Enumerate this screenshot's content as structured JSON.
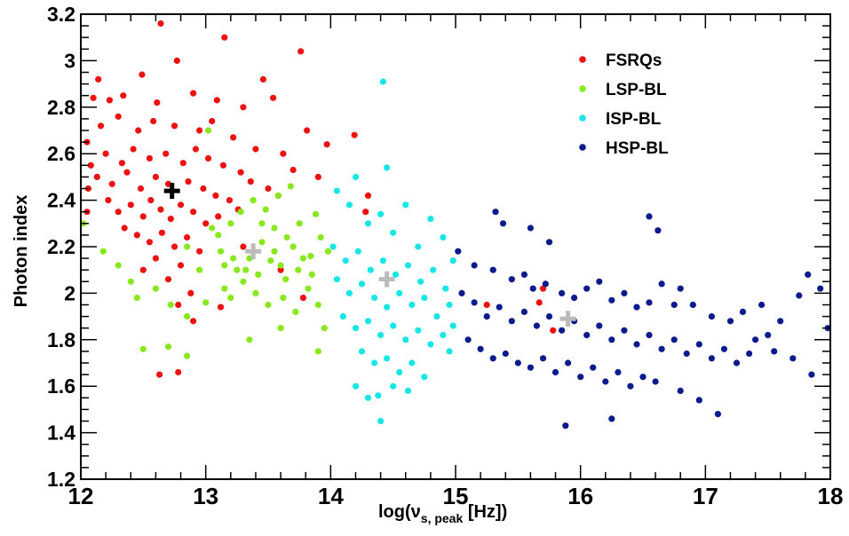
{
  "chart_data": {
    "type": "scatter",
    "xlabel_main": "log(ν",
    "xlabel_sub": "s, peak",
    "xlabel_tail": " [Hz])",
    "ylabel": "Photon  index",
    "xlim": [
      12,
      18
    ],
    "ylim": [
      1.2,
      3.2
    ],
    "xticks": [
      12,
      13,
      14,
      15,
      16,
      17,
      18
    ],
    "yticks": [
      1.2,
      1.4,
      1.6,
      1.8,
      2,
      2.2,
      2.4,
      2.6,
      2.8,
      3,
      3.2
    ],
    "xtick_labels": [
      "12",
      "13",
      "14",
      "15",
      "16",
      "17",
      "18"
    ],
    "ytick_labels": [
      "1.2",
      "1.4",
      "1.6",
      "1.8",
      "2",
      "2.2",
      "2.4",
      "2.6",
      "2.8",
      "3",
      "3.2"
    ],
    "grid": false,
    "legend_position": "top-right",
    "series": [
      {
        "name": "FSRQs",
        "color": "#ee1111",
        "mean_marker": {
          "x": 12.73,
          "y": 2.44,
          "color": "#000000"
        },
        "points": [
          [
            12.64,
            3.16
          ],
          [
            13.15,
            3.1
          ],
          [
            13.76,
            3.04
          ],
          [
            12.77,
            3.0
          ],
          [
            12.14,
            2.92
          ],
          [
            12.49,
            2.94
          ],
          [
            13.46,
            2.92
          ],
          [
            12.1,
            2.84
          ],
          [
            12.23,
            2.83
          ],
          [
            12.34,
            2.85
          ],
          [
            12.61,
            2.82
          ],
          [
            12.9,
            2.86
          ],
          [
            13.09,
            2.83
          ],
          [
            13.3,
            2.8
          ],
          [
            13.54,
            2.84
          ],
          [
            13.81,
            2.7
          ],
          [
            13.97,
            2.64
          ],
          [
            14.19,
            2.68
          ],
          [
            12.05,
            2.65
          ],
          [
            12.16,
            2.72
          ],
          [
            12.3,
            2.76
          ],
          [
            12.46,
            2.7
          ],
          [
            12.58,
            2.74
          ],
          [
            12.75,
            2.72
          ],
          [
            12.95,
            2.7
          ],
          [
            13.05,
            2.74
          ],
          [
            13.22,
            2.67
          ],
          [
            13.4,
            2.62
          ],
          [
            13.62,
            2.6
          ],
          [
            13.7,
            2.53
          ],
          [
            13.9,
            2.5
          ],
          [
            12.08,
            2.55
          ],
          [
            12.2,
            2.6
          ],
          [
            12.33,
            2.56
          ],
          [
            12.42,
            2.62
          ],
          [
            12.55,
            2.58
          ],
          [
            12.68,
            2.6
          ],
          [
            12.82,
            2.56
          ],
          [
            12.92,
            2.62
          ],
          [
            13.02,
            2.58
          ],
          [
            13.14,
            2.55
          ],
          [
            13.28,
            2.52
          ],
          [
            13.36,
            2.48
          ],
          [
            13.5,
            2.45
          ],
          [
            13.58,
            2.42
          ],
          [
            12.06,
            2.45
          ],
          [
            12.13,
            2.5
          ],
          [
            12.25,
            2.47
          ],
          [
            12.37,
            2.52
          ],
          [
            12.48,
            2.45
          ],
          [
            12.6,
            2.5
          ],
          [
            12.7,
            2.47
          ],
          [
            12.86,
            2.48
          ],
          [
            12.98,
            2.45
          ],
          [
            13.08,
            2.42
          ],
          [
            13.19,
            2.4
          ],
          [
            13.26,
            2.36
          ],
          [
            12.22,
            2.4
          ],
          [
            12.3,
            2.35
          ],
          [
            12.4,
            2.38
          ],
          [
            12.5,
            2.33
          ],
          [
            12.56,
            2.4
          ],
          [
            12.64,
            2.36
          ],
          [
            12.72,
            2.32
          ],
          [
            12.8,
            2.38
          ],
          [
            12.9,
            2.35
          ],
          [
            13.0,
            2.3
          ],
          [
            13.1,
            2.33
          ],
          [
            12.35,
            2.28
          ],
          [
            12.45,
            2.25
          ],
          [
            12.55,
            2.22
          ],
          [
            12.65,
            2.26
          ],
          [
            12.75,
            2.2
          ],
          [
            12.85,
            2.24
          ],
          [
            12.95,
            2.18
          ],
          [
            12.6,
            2.15
          ],
          [
            12.8,
            2.12
          ],
          [
            12.5,
            2.1
          ],
          [
            12.7,
            2.06
          ],
          [
            12.88,
            2.0
          ],
          [
            12.78,
            1.95
          ],
          [
            12.9,
            1.88
          ],
          [
            13.12,
            1.94
          ],
          [
            12.63,
            1.65
          ],
          [
            12.78,
            1.66
          ],
          [
            13.78,
            1.98
          ],
          [
            15.25,
            1.95
          ],
          [
            15.7,
            2.02
          ],
          [
            15.67,
            1.96
          ],
          [
            15.78,
            1.84
          ],
          [
            14.3,
            2.42
          ],
          [
            14.28,
            2.35
          ],
          [
            12.05,
            2.35
          ],
          [
            13.3,
            2.2
          ],
          [
            13.6,
            2.1
          ]
        ]
      },
      {
        "name": "LSP-BL",
        "color": "#88e81e",
        "mean_marker": {
          "x": 13.38,
          "y": 2.18,
          "color": "#bbbbbb"
        },
        "points": [
          [
            12.02,
            2.3
          ],
          [
            12.18,
            2.18
          ],
          [
            12.3,
            2.12
          ],
          [
            12.4,
            2.05
          ],
          [
            12.45,
            1.98
          ],
          [
            12.6,
            2.02
          ],
          [
            12.72,
            1.95
          ],
          [
            12.85,
            1.9
          ],
          [
            13.0,
            1.96
          ],
          [
            13.15,
            2.02
          ],
          [
            13.25,
            2.1
          ],
          [
            13.35,
            2.15
          ],
          [
            13.45,
            2.22
          ],
          [
            13.55,
            2.28
          ],
          [
            13.6,
            2.12
          ],
          [
            13.7,
            2.2
          ],
          [
            13.78,
            2.15
          ],
          [
            13.85,
            2.08
          ],
          [
            13.92,
            2.24
          ],
          [
            13.98,
            2.18
          ],
          [
            13.3,
            2.05
          ],
          [
            13.4,
            2.0
          ],
          [
            13.5,
            1.95
          ],
          [
            13.62,
            1.98
          ],
          [
            13.72,
            1.92
          ],
          [
            13.82,
            2.02
          ],
          [
            13.9,
            1.95
          ],
          [
            13.95,
            1.85
          ],
          [
            13.1,
            2.25
          ],
          [
            13.2,
            2.3
          ],
          [
            13.28,
            2.35
          ],
          [
            13.38,
            2.4
          ],
          [
            13.48,
            2.36
          ],
          [
            13.58,
            2.42
          ],
          [
            13.68,
            2.46
          ],
          [
            13.12,
            2.18
          ],
          [
            13.22,
            2.15
          ],
          [
            13.32,
            2.1
          ],
          [
            13.42,
            2.08
          ],
          [
            13.52,
            2.14
          ],
          [
            13.64,
            2.06
          ],
          [
            13.74,
            2.1
          ],
          [
            13.84,
            2.16
          ],
          [
            12.5,
            1.76
          ],
          [
            12.7,
            1.77
          ],
          [
            12.85,
            1.73
          ],
          [
            13.02,
            2.7
          ],
          [
            13.2,
            1.98
          ],
          [
            13.35,
            1.8
          ],
          [
            13.6,
            1.85
          ],
          [
            13.9,
            1.75
          ],
          [
            12.95,
            2.1
          ],
          [
            12.85,
            2.2
          ],
          [
            13.05,
            2.28
          ],
          [
            13.15,
            2.12
          ],
          [
            13.45,
            2.3
          ],
          [
            13.55,
            2.18
          ],
          [
            13.65,
            2.24
          ],
          [
            13.75,
            2.3
          ],
          [
            13.88,
            2.34
          ]
        ]
      },
      {
        "name": "ISP-BL",
        "color": "#18e6e6",
        "mean_marker": {
          "x": 14.45,
          "y": 2.06,
          "color": "#bbbbbb"
        },
        "points": [
          [
            14.42,
            2.91
          ],
          [
            14.45,
            2.54
          ],
          [
            14.2,
            2.5
          ],
          [
            14.05,
            2.44
          ],
          [
            14.15,
            2.38
          ],
          [
            14.3,
            2.3
          ],
          [
            14.4,
            2.34
          ],
          [
            14.5,
            2.26
          ],
          [
            14.6,
            2.38
          ],
          [
            14.7,
            2.2
          ],
          [
            14.8,
            2.32
          ],
          [
            14.9,
            2.24
          ],
          [
            14.02,
            2.2
          ],
          [
            14.12,
            2.14
          ],
          [
            14.22,
            2.18
          ],
          [
            14.32,
            2.1
          ],
          [
            14.42,
            2.14
          ],
          [
            14.52,
            2.08
          ],
          [
            14.62,
            2.12
          ],
          [
            14.72,
            2.05
          ],
          [
            14.82,
            2.1
          ],
          [
            14.92,
            2.02
          ],
          [
            14.98,
            2.14
          ],
          [
            14.05,
            2.06
          ],
          [
            14.15,
            2.0
          ],
          [
            14.25,
            2.04
          ],
          [
            14.35,
            1.98
          ],
          [
            14.45,
            1.94
          ],
          [
            14.55,
            2.0
          ],
          [
            14.65,
            1.95
          ],
          [
            14.75,
            1.98
          ],
          [
            14.85,
            1.9
          ],
          [
            14.95,
            1.95
          ],
          [
            14.1,
            1.9
          ],
          [
            14.2,
            1.85
          ],
          [
            14.3,
            1.88
          ],
          [
            14.4,
            1.82
          ],
          [
            14.5,
            1.86
          ],
          [
            14.6,
            1.8
          ],
          [
            14.7,
            1.84
          ],
          [
            14.8,
            1.78
          ],
          [
            14.9,
            1.82
          ],
          [
            14.25,
            1.75
          ],
          [
            14.35,
            1.7
          ],
          [
            14.45,
            1.72
          ],
          [
            14.55,
            1.66
          ],
          [
            14.65,
            1.7
          ],
          [
            14.75,
            1.64
          ],
          [
            14.2,
            1.6
          ],
          [
            14.3,
            1.55
          ],
          [
            14.38,
            1.56
          ],
          [
            14.5,
            1.6
          ],
          [
            14.62,
            1.58
          ],
          [
            14.4,
            1.45
          ],
          [
            14.95,
            1.75
          ],
          [
            14.98,
            1.86
          ]
        ]
      },
      {
        "name": "HSP-BL",
        "color": "#0b1a8c",
        "mean_marker": {
          "x": 15.9,
          "y": 1.89,
          "color": "#bbbbbb"
        },
        "points": [
          [
            15.32,
            2.35
          ],
          [
            15.38,
            2.3
          ],
          [
            15.6,
            2.28
          ],
          [
            15.75,
            2.22
          ],
          [
            16.55,
            2.33
          ],
          [
            16.62,
            2.27
          ],
          [
            15.02,
            2.18
          ],
          [
            15.15,
            2.12
          ],
          [
            15.3,
            2.1
          ],
          [
            15.45,
            2.06
          ],
          [
            15.55,
            2.08
          ],
          [
            15.62,
            2.02
          ],
          [
            15.72,
            2.04
          ],
          [
            15.85,
            2.0
          ],
          [
            15.95,
            1.98
          ],
          [
            16.05,
            2.02
          ],
          [
            16.15,
            2.05
          ],
          [
            16.25,
            1.97
          ],
          [
            16.35,
            2.0
          ],
          [
            16.45,
            1.94
          ],
          [
            16.55,
            1.96
          ],
          [
            16.65,
            2.04
          ],
          [
            16.75,
            1.95
          ],
          [
            15.05,
            2.0
          ],
          [
            15.15,
            1.96
          ],
          [
            15.25,
            1.9
          ],
          [
            15.35,
            1.94
          ],
          [
            15.45,
            1.88
          ],
          [
            15.55,
            1.92
          ],
          [
            15.65,
            1.86
          ],
          [
            15.75,
            1.9
          ],
          [
            15.85,
            1.84
          ],
          [
            15.95,
            1.88
          ],
          [
            16.05,
            1.82
          ],
          [
            16.15,
            1.86
          ],
          [
            16.25,
            1.8
          ],
          [
            16.35,
            1.84
          ],
          [
            16.45,
            1.78
          ],
          [
            16.55,
            1.82
          ],
          [
            16.65,
            1.76
          ],
          [
            16.75,
            1.8
          ],
          [
            16.85,
            1.74
          ],
          [
            16.95,
            1.78
          ],
          [
            17.05,
            1.72
          ],
          [
            17.15,
            1.76
          ],
          [
            17.25,
            1.7
          ],
          [
            17.35,
            1.74
          ],
          [
            15.1,
            1.8
          ],
          [
            15.2,
            1.76
          ],
          [
            15.3,
            1.72
          ],
          [
            15.4,
            1.74
          ],
          [
            15.5,
            1.7
          ],
          [
            15.6,
            1.68
          ],
          [
            15.7,
            1.72
          ],
          [
            15.8,
            1.66
          ],
          [
            15.9,
            1.7
          ],
          [
            16.0,
            1.64
          ],
          [
            16.1,
            1.68
          ],
          [
            16.2,
            1.62
          ],
          [
            16.3,
            1.66
          ],
          [
            16.4,
            1.6
          ],
          [
            16.5,
            1.64
          ],
          [
            16.6,
            1.62
          ],
          [
            16.8,
            1.58
          ],
          [
            16.95,
            1.54
          ],
          [
            17.1,
            1.48
          ],
          [
            16.25,
            1.46
          ],
          [
            15.88,
            1.43
          ],
          [
            17.3,
            1.92
          ],
          [
            17.45,
            1.95
          ],
          [
            17.6,
            1.88
          ],
          [
            17.75,
            1.99
          ],
          [
            17.82,
            2.08
          ],
          [
            17.92,
            2.02
          ],
          [
            17.98,
            1.85
          ],
          [
            17.7,
            1.72
          ],
          [
            17.85,
            1.65
          ],
          [
            17.5,
            1.82
          ],
          [
            17.55,
            1.75
          ],
          [
            17.4,
            1.8
          ],
          [
            17.2,
            1.88
          ],
          [
            17.05,
            1.9
          ],
          [
            16.9,
            1.95
          ],
          [
            16.8,
            2.02
          ]
        ]
      }
    ]
  }
}
